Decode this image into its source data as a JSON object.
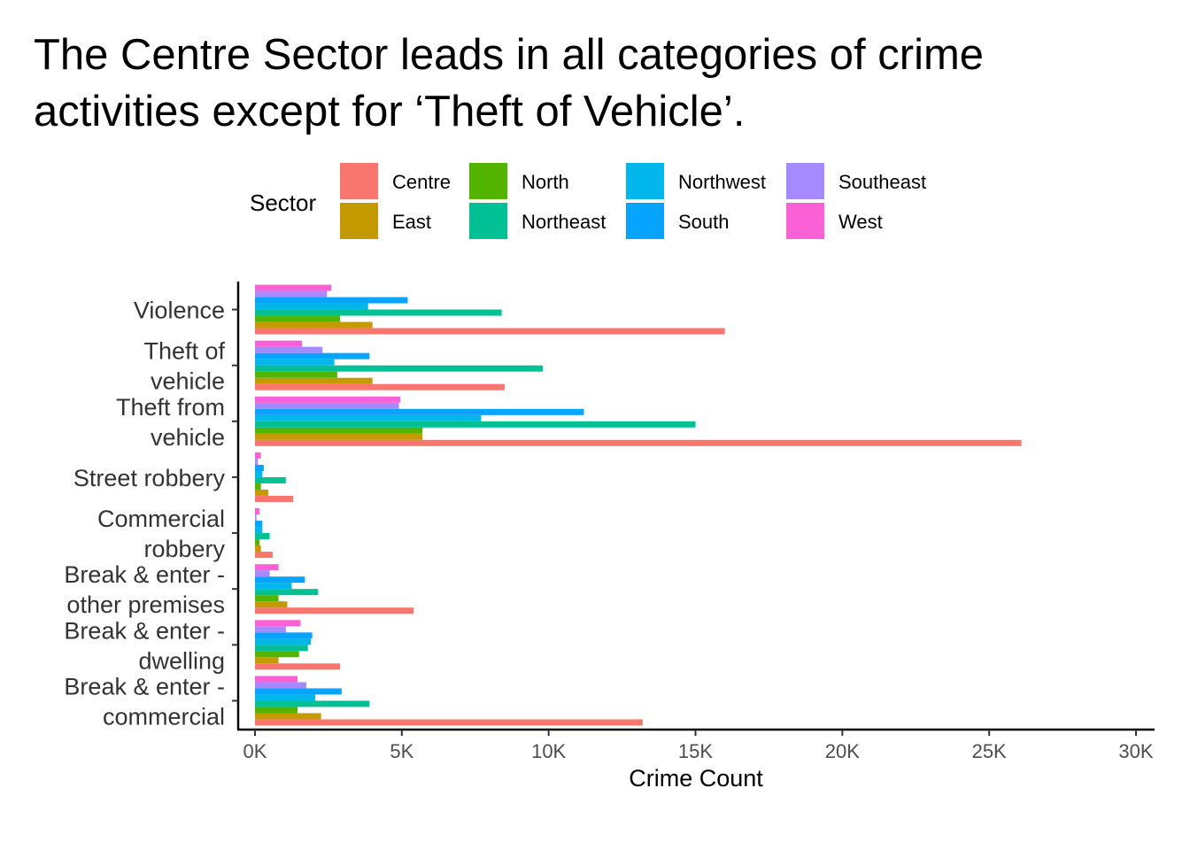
{
  "chart_data": {
    "type": "bar",
    "orientation": "horizontal",
    "title": "The Centre Sector leads in all categories of crime activities except for ‘Theft of Vehicle’.",
    "xlabel": "Crime Count",
    "ylabel": "",
    "xlim": [
      0,
      30000
    ],
    "x_ticks": [
      0,
      5000,
      10000,
      15000,
      20000,
      25000,
      30000
    ],
    "x_tick_labels": [
      "0K",
      "5K",
      "10K",
      "15K",
      "20K",
      "25K",
      "30K"
    ],
    "grid": false,
    "legend": {
      "title": "Sector",
      "position": "top",
      "layout": [
        [
          "Centre",
          "North",
          "Northwest",
          "Southeast"
        ],
        [
          "East",
          "Northeast",
          "South",
          "West"
        ]
      ]
    },
    "categories": [
      "Violence",
      "Theft of vehicle",
      "Theft from vehicle",
      "Street robbery",
      "Commercial robbery",
      "Break & enter - other premises",
      "Break & enter - dwelling",
      "Break & enter - commercial"
    ],
    "category_label_lines": [
      [
        "Violence"
      ],
      [
        "Theft of",
        "vehicle"
      ],
      [
        "Theft from",
        "vehicle"
      ],
      [
        "Street robbery"
      ],
      [
        "Commercial",
        "robbery"
      ],
      [
        "Break & enter -",
        "other premises"
      ],
      [
        "Break & enter -",
        "dwelling"
      ],
      [
        "Break & enter -",
        "commercial"
      ]
    ],
    "series": [
      {
        "name": "Centre",
        "color": "#F8766D",
        "values": [
          16000,
          8500,
          26100,
          1300,
          600,
          5400,
          2900,
          13200
        ]
      },
      {
        "name": "East",
        "color": "#C49A00",
        "values": [
          4000,
          4000,
          5700,
          450,
          200,
          1100,
          800,
          2250
        ]
      },
      {
        "name": "North",
        "color": "#53B400",
        "values": [
          2900,
          2800,
          5700,
          200,
          150,
          800,
          1500,
          1450
        ]
      },
      {
        "name": "Northeast",
        "color": "#00C094",
        "values": [
          8400,
          9800,
          15000,
          1050,
          500,
          2150,
          1800,
          3900
        ]
      },
      {
        "name": "Northwest",
        "color": "#00B6EB",
        "values": [
          3850,
          2700,
          7700,
          250,
          250,
          1250,
          1900,
          2050
        ]
      },
      {
        "name": "South",
        "color": "#06A4FF",
        "values": [
          5200,
          3900,
          11200,
          300,
          250,
          1700,
          1950,
          2950
        ]
      },
      {
        "name": "Southeast",
        "color": "#A58AFF",
        "values": [
          2450,
          2300,
          4900,
          100,
          50,
          500,
          1050,
          1750
        ]
      },
      {
        "name": "West",
        "color": "#FB61D7",
        "values": [
          2600,
          1600,
          4950,
          200,
          150,
          800,
          1550,
          1450
        ]
      }
    ]
  }
}
